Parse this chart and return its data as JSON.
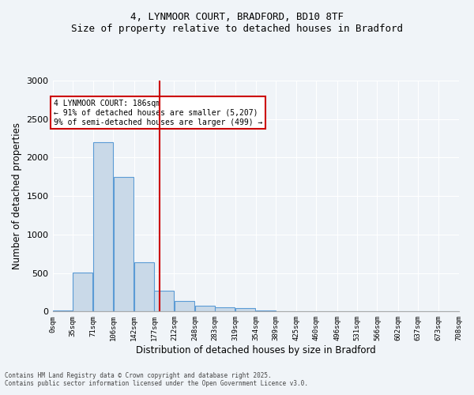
{
  "title_line1": "4, LYNMOOR COURT, BRADFORD, BD10 8TF",
  "title_line2": "Size of property relative to detached houses in Bradford",
  "xlabel": "Distribution of detached houses by size in Bradford",
  "ylabel": "Number of detached properties",
  "bar_color": "#c9d9e8",
  "bar_edge_color": "#5b9bd5",
  "bin_edges": [
    0,
    35,
    71,
    106,
    142,
    177,
    212,
    248,
    283,
    319,
    354,
    389,
    425,
    460,
    496,
    531,
    566,
    602,
    637,
    673,
    708
  ],
  "bar_heights": [
    10,
    510,
    2200,
    1750,
    640,
    270,
    140,
    80,
    55,
    45,
    15,
    5,
    5,
    5,
    2,
    2,
    2,
    2,
    2,
    2
  ],
  "tick_labels": [
    "0sqm",
    "35sqm",
    "71sqm",
    "106sqm",
    "142sqm",
    "177sqm",
    "212sqm",
    "248sqm",
    "283sqm",
    "319sqm",
    "354sqm",
    "389sqm",
    "425sqm",
    "460sqm",
    "496sqm",
    "531sqm",
    "566sqm",
    "602sqm",
    "637sqm",
    "673sqm",
    "708sqm"
  ],
  "vline_x": 186,
  "vline_color": "#cc0000",
  "annotation_text": "4 LYNMOOR COURT: 186sqm\n← 91% of detached houses are smaller (5,207)\n9% of semi-detached houses are larger (499) →",
  "annotation_box_color": "#ffffff",
  "annotation_box_edge": "#cc0000",
  "ylim": [
    0,
    3000
  ],
  "yticks": [
    0,
    500,
    1000,
    1500,
    2000,
    2500,
    3000
  ],
  "footer_line1": "Contains HM Land Registry data © Crown copyright and database right 2025.",
  "footer_line2": "Contains public sector information licensed under the Open Government Licence v3.0.",
  "bg_color": "#f0f4f8",
  "plot_bg_color": "#f0f4f8"
}
